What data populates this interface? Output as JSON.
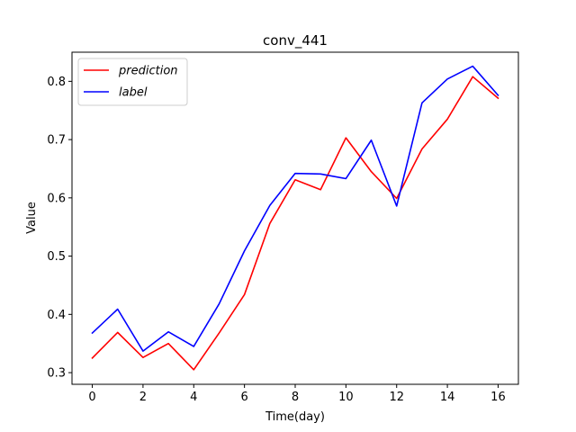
{
  "chart_data": {
    "type": "line",
    "title": "conv_441",
    "xlabel": "Time(day)",
    "ylabel": "Value",
    "x": [
      0,
      1,
      2,
      3,
      4,
      5,
      6,
      7,
      8,
      9,
      10,
      11,
      12,
      13,
      14,
      15,
      16
    ],
    "xlim": [
      -0.8,
      16.8
    ],
    "ylim": [
      0.28,
      0.85
    ],
    "xticks": [
      0,
      2,
      4,
      6,
      8,
      10,
      12,
      14,
      16
    ],
    "yticks": [
      0.3,
      0.4,
      0.5,
      0.6,
      0.7,
      0.8
    ],
    "xtick_labels": [
      "0",
      "2",
      "4",
      "6",
      "8",
      "10",
      "12",
      "14",
      "16"
    ],
    "ytick_labels": [
      "0.3",
      "0.4",
      "0.5",
      "0.6",
      "0.7",
      "0.8"
    ],
    "grid": false,
    "legend_position": "top-left",
    "series": [
      {
        "name": "prediction",
        "color": "#ff0000",
        "values": [
          0.325,
          0.369,
          0.326,
          0.35,
          0.305,
          0.368,
          0.434,
          0.556,
          0.631,
          0.614,
          0.703,
          0.645,
          0.599,
          0.684,
          0.735,
          0.808,
          0.771
        ]
      },
      {
        "name": "label",
        "color": "#0000ff",
        "values": [
          0.368,
          0.409,
          0.337,
          0.37,
          0.345,
          0.418,
          0.509,
          0.587,
          0.642,
          0.641,
          0.633,
          0.699,
          0.586,
          0.763,
          0.804,
          0.826,
          0.776
        ]
      }
    ]
  }
}
